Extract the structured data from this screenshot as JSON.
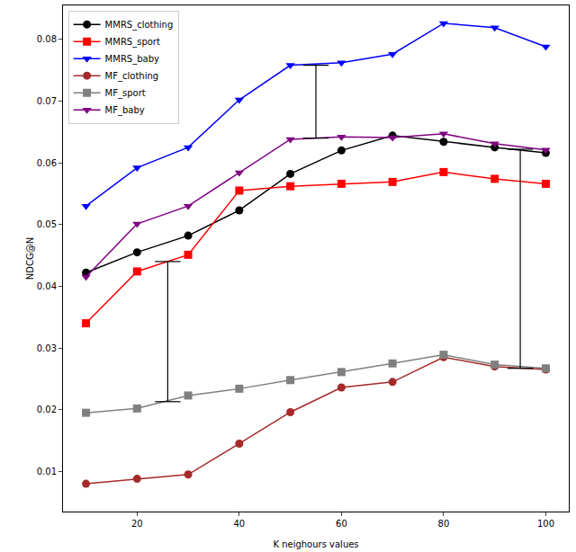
{
  "chart_data": {
    "type": "line",
    "x_label": "K neighours values",
    "y_label": "NDCG@N",
    "x": [
      10,
      20,
      30,
      40,
      50,
      60,
      70,
      80,
      90,
      100
    ],
    "series": [
      {
        "name": "MMRS_clothing",
        "color": "#000000",
        "marker": "circle",
        "values": [
          0.0422,
          0.0455,
          0.0482,
          0.0523,
          0.0582,
          0.062,
          0.0644,
          0.0634,
          0.0625,
          0.0616
        ]
      },
      {
        "name": "MMRS_sport",
        "color": "#ff0000",
        "marker": "square",
        "values": [
          0.034,
          0.0424,
          0.0451,
          0.0555,
          0.0562,
          0.0566,
          0.0569,
          0.0585,
          0.0574,
          0.0566
        ]
      },
      {
        "name": "MMRS_baby",
        "color": "#0000ff",
        "marker": "triangle-down",
        "values": [
          0.053,
          0.0592,
          0.0625,
          0.0702,
          0.0758,
          0.0762,
          0.0776,
          0.0826,
          0.0819,
          0.0788
        ]
      },
      {
        "name": "MF_clothing",
        "color": "#a52a2a",
        "marker": "circle",
        "values": [
          0.008,
          0.0088,
          0.0095,
          0.0145,
          0.0196,
          0.0236,
          0.0245,
          0.0285,
          0.027,
          0.0265
        ]
      },
      {
        "name": "MF_sport",
        "color": "#808080",
        "marker": "square",
        "values": [
          0.0195,
          0.0202,
          0.0223,
          0.0234,
          0.0248,
          0.0261,
          0.0275,
          0.0289,
          0.0273,
          0.0267
        ]
      },
      {
        "name": "MF_baby",
        "color": "#800080",
        "marker": "triangle-down",
        "values": [
          0.0415,
          0.0501,
          0.053,
          0.0584,
          0.0638,
          0.0642,
          0.0641,
          0.0647,
          0.0631,
          0.0621
        ]
      }
    ],
    "gap_bars": [
      {
        "x": 55,
        "low": 0.064,
        "high": 0.0758
      },
      {
        "x": 26,
        "low": 0.0213,
        "high": 0.044
      },
      {
        "x": 95,
        "low": 0.0267,
        "high": 0.0622
      }
    ],
    "xlim": [
      5.5,
      104.5
    ],
    "xticks": [
      20,
      40,
      60,
      80,
      100
    ],
    "ylim": [
      0.0035,
      0.0855
    ],
    "yticks": [
      0.01,
      0.02,
      0.03,
      0.04,
      0.05,
      0.06,
      0.07,
      0.08
    ],
    "legend": "upper left",
    "grid": false
  }
}
